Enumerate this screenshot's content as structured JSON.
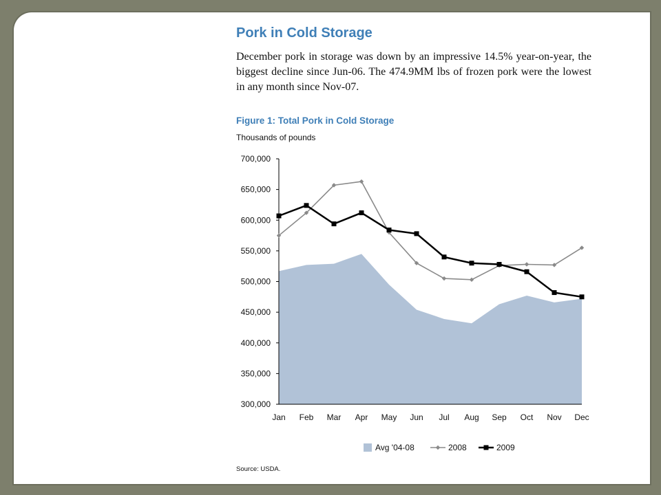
{
  "section_title": "Pork in Cold Storage",
  "intro": "December pork in storage was down by an impressive 14.5% year-on-year, the biggest decline since Jun-06. The 474.9MM lbs of frozen pork were the lowest in any month since Nov-07.",
  "figure_title": "Figure 1: Total Pork in Cold Storage",
  "figure_subtitle": "Thousands of pounds",
  "source": "Source: USDA.",
  "colors": {
    "heading": "#3f7fb7",
    "area": "#b1c2d7",
    "line_2008": "#8a8a8a",
    "line_2009": "#000000",
    "frame_bg": "#7d7f6c"
  },
  "chart_data": {
    "type": "line",
    "title": "Figure 1: Total Pork in Cold Storage",
    "ylabel": "Thousands of pounds",
    "xlabel": "",
    "categories": [
      "Jan",
      "Feb",
      "Mar",
      "Apr",
      "May",
      "Jun",
      "Jul",
      "Aug",
      "Sep",
      "Oct",
      "Nov",
      "Dec"
    ],
    "ylim": [
      300000,
      700000
    ],
    "yticks": [
      300000,
      350000,
      400000,
      450000,
      500000,
      550000,
      600000,
      650000,
      700000
    ],
    "ytick_labels": [
      "300,000",
      "350,000",
      "400,000",
      "450,000",
      "500,000",
      "550,000",
      "600,000",
      "650,000",
      "700,000"
    ],
    "grid": false,
    "legend_position": "bottom",
    "series": [
      {
        "name": "Avg '04-08",
        "kind": "area",
        "color": "#b1c2d7",
        "values": [
          517000,
          527000,
          529000,
          545000,
          495000,
          454000,
          439000,
          432000,
          463000,
          477000,
          466000,
          472000
        ]
      },
      {
        "name": "2008",
        "kind": "line",
        "marker": "diamond",
        "color": "#8a8a8a",
        "values": [
          575000,
          612000,
          657000,
          663000,
          580000,
          530000,
          505000,
          503000,
          526000,
          528000,
          527000,
          555000
        ]
      },
      {
        "name": "2009",
        "kind": "line",
        "marker": "square",
        "color": "#000000",
        "values": [
          607000,
          624000,
          594000,
          612000,
          584000,
          578000,
          540000,
          530000,
          528000,
          516000,
          482000,
          475000
        ]
      }
    ]
  }
}
